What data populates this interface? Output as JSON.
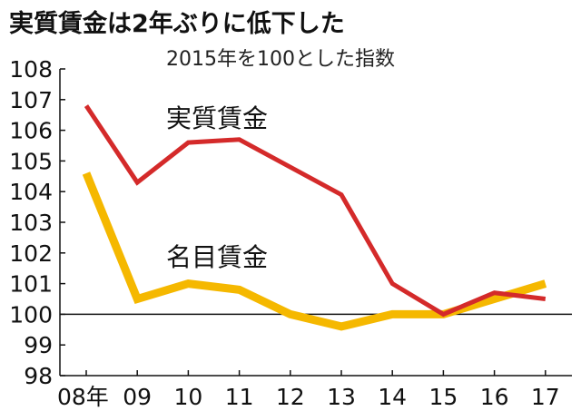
{
  "chart_data": {
    "type": "line",
    "title": "実質賃金は2年ぶりに低下した",
    "subtitle": "2015年を100とした指数",
    "categories": [
      "08年",
      "09",
      "10",
      "11",
      "12",
      "13",
      "14",
      "15",
      "16",
      "17"
    ],
    "ylim": [
      98,
      108
    ],
    "yticks": [
      "108",
      "107",
      "106",
      "105",
      "104",
      "103",
      "102",
      "101",
      "100",
      "99",
      "98"
    ],
    "reference_line": 100,
    "grid": false,
    "series": [
      {
        "name": "実質賃金",
        "color": "#d42a2a",
        "values": [
          106.8,
          104.3,
          105.6,
          105.7,
          104.8,
          103.9,
          101.0,
          100.0,
          100.7,
          100.5
        ]
      },
      {
        "name": "名目賃金",
        "color": "#f5b800",
        "values": [
          104.6,
          100.5,
          101.0,
          100.8,
          100.0,
          99.6,
          100.0,
          100.0,
          100.5,
          101.0
        ]
      }
    ]
  }
}
